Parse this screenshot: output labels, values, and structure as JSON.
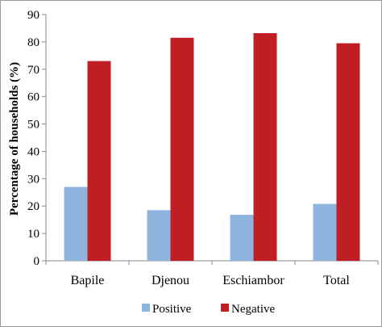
{
  "chart_data": {
    "type": "bar",
    "categories": [
      "Bapile",
      "Djenou",
      "Eschiambor",
      "Total"
    ],
    "series": [
      {
        "name": "Positive",
        "values": [
          27.0,
          18.5,
          16.8,
          20.8
        ],
        "color": "#8fb4de"
      },
      {
        "name": "Negative",
        "values": [
          73.0,
          81.5,
          83.2,
          79.5
        ],
        "color": "#bf1e24"
      }
    ],
    "ylabel": "Percentage of households (%)",
    "xlabel": "",
    "ylim": [
      0,
      90
    ],
    "yticks": [
      0,
      10,
      20,
      30,
      40,
      50,
      60,
      70,
      80,
      90
    ],
    "grid": false,
    "legend_position": "bottom"
  }
}
